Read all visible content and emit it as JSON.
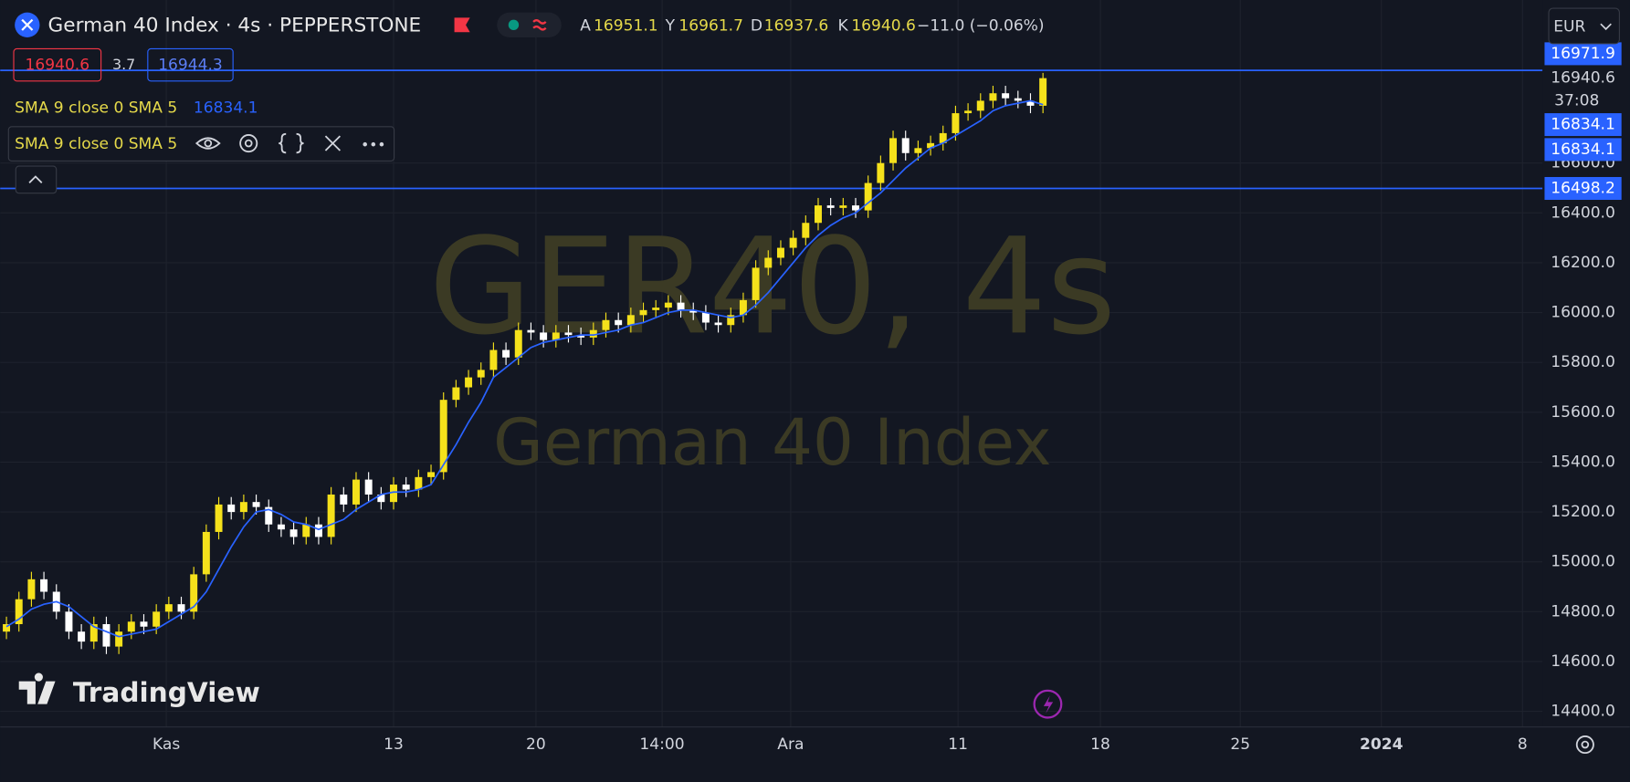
{
  "header": {
    "symbol_title": "German 40 Index · 4s · PEPPERSTONE",
    "ohlc": [
      {
        "key": "A",
        "value": 16951.1
      },
      {
        "key": "Y",
        "value": 16961.7
      },
      {
        "key": "D",
        "value": 16937.6
      },
      {
        "key": "K",
        "value": 16940.6
      }
    ],
    "change": "−11.0 (−0.06%)",
    "bid": 16940.6,
    "spread": 3.7,
    "ask": 16944.3,
    "currency": "EUR",
    "brand": "TradingView"
  },
  "chart_data": {
    "type": "candlestick",
    "watermark": "GER40, 4s",
    "watermark_subtitle": "German 40 Index",
    "up_color": "#f5e11b",
    "down_color": "#ffffff",
    "xlim": [
      -0.5,
      123
    ],
    "ylim": [
      14337.5,
      17254.2
    ],
    "xticks": [
      {
        "value": 12.8,
        "label": "Kas"
      },
      {
        "value": 31,
        "label": "13"
      },
      {
        "value": 42.4,
        "label": "20"
      },
      {
        "value": 52.5,
        "label": "14:00"
      },
      {
        "value": 62.8,
        "label": "Ara"
      },
      {
        "value": 76.2,
        "label": "11"
      },
      {
        "value": 87.6,
        "label": "18"
      },
      {
        "value": 98.8,
        "label": "25"
      },
      {
        "value": 110.1,
        "label": "2024"
      },
      {
        "value": 121.4,
        "label": "8"
      }
    ],
    "yticks": [
      {
        "value": 14400,
        "label": "14400.0"
      },
      {
        "value": 14600,
        "label": "14600.0"
      },
      {
        "value": 14800,
        "label": "14800.0"
      },
      {
        "value": 15000,
        "label": "15000.0"
      },
      {
        "value": 15200,
        "label": "15200.0"
      },
      {
        "value": 15400,
        "label": "15400.0"
      },
      {
        "value": 15600,
        "label": "15600.0"
      },
      {
        "value": 15800,
        "label": "15800.0"
      },
      {
        "value": 16000,
        "label": "16000.0"
      },
      {
        "value": 16200,
        "label": "16200.0"
      },
      {
        "value": 16400,
        "label": "16400.0"
      },
      {
        "value": 16600,
        "label": "16600.0"
      }
    ],
    "grid": true,
    "open": [
      14720,
      14750,
      14850,
      14930,
      14880,
      14800,
      14720,
      14680,
      14750,
      14660,
      14720,
      14760,
      14740,
      14800,
      14830,
      14800,
      14950,
      15120,
      15230,
      15200,
      15240,
      15220,
      15150,
      15130,
      15100,
      15150,
      15100,
      15270,
      15230,
      15330,
      15270,
      15240,
      15310,
      15290,
      15340,
      15360,
      15650,
      15700,
      15740,
      15770,
      15850,
      15820,
      15930,
      15920,
      15890,
      15920,
      15910,
      15900,
      15930,
      15970,
      15950,
      15990,
      16010,
      16020,
      16040,
      16010,
      16000,
      15960,
      15950,
      15990,
      16050,
      16180,
      16220,
      16260,
      16300,
      16360,
      16430,
      16420,
      16430,
      16410,
      16520,
      16600,
      16700,
      16640,
      16660,
      16680,
      16720,
      16800,
      16810,
      16850,
      16880,
      16860,
      16850,
      16830
    ],
    "high": [
      14780,
      14880,
      14960,
      14960,
      14910,
      14830,
      14750,
      14780,
      14780,
      14750,
      14790,
      14790,
      14830,
      14860,
      14860,
      14980,
      15150,
      15260,
      15260,
      15270,
      15270,
      15250,
      15180,
      15160,
      15180,
      15180,
      15300,
      15300,
      15360,
      15360,
      15300,
      15340,
      15340,
      15370,
      15390,
      15680,
      15730,
      15770,
      15800,
      15880,
      15880,
      15960,
      15960,
      15950,
      15950,
      15950,
      15940,
      15960,
      16000,
      16000,
      16020,
      16040,
      16050,
      16070,
      16070,
      16040,
      16030,
      15990,
      16020,
      16080,
      16210,
      16250,
      16290,
      16330,
      16390,
      16460,
      16460,
      16460,
      16460,
      16550,
      16630,
      16730,
      16730,
      16690,
      16710,
      16750,
      16830,
      16840,
      16880,
      16910,
      16910,
      16890,
      16880,
      16961.7
    ],
    "low": [
      14690,
      14720,
      14820,
      14850,
      14770,
      14690,
      14650,
      14650,
      14630,
      14630,
      14690,
      14710,
      14710,
      14770,
      14770,
      14770,
      14920,
      15090,
      15170,
      15170,
      15190,
      15120,
      15100,
      15070,
      15070,
      15070,
      15070,
      15200,
      15200,
      15240,
      15210,
      15210,
      15260,
      15260,
      15310,
      15330,
      15620,
      15670,
      15710,
      15740,
      15790,
      15790,
      15890,
      15860,
      15860,
      15880,
      15870,
      15870,
      15900,
      15920,
      15920,
      15960,
      15980,
      15990,
      15980,
      15970,
      15930,
      15920,
      15920,
      15960,
      16020,
      16150,
      16190,
      16230,
      16270,
      16330,
      16390,
      16390,
      16380,
      16380,
      16490,
      16570,
      16610,
      16610,
      16630,
      16650,
      16690,
      16770,
      16780,
      16820,
      16830,
      16820,
      16800,
      16800
    ],
    "close": [
      14750,
      14850,
      14930,
      14880,
      14800,
      14720,
      14680,
      14750,
      14660,
      14720,
      14760,
      14740,
      14800,
      14830,
      14800,
      14950,
      15120,
      15230,
      15200,
      15240,
      15220,
      15150,
      15130,
      15100,
      15150,
      15100,
      15270,
      15230,
      15330,
      15270,
      15240,
      15310,
      15290,
      15340,
      15360,
      15650,
      15700,
      15740,
      15770,
      15850,
      15820,
      15930,
      15920,
      15890,
      15920,
      15910,
      15900,
      15930,
      15970,
      15950,
      15990,
      16010,
      16020,
      16040,
      16010,
      16000,
      15960,
      15950,
      15990,
      16050,
      16180,
      16220,
      16260,
      16300,
      16360,
      16430,
      16420,
      16430,
      16410,
      16520,
      16600,
      16700,
      16640,
      16660,
      16680,
      16720,
      16800,
      16810,
      16850,
      16880,
      16860,
      16850,
      16830,
      16940.6
    ],
    "sma": {
      "name": "SMA 9 close 0 SMA 5",
      "color": "#2962ff",
      "values": [
        14740,
        14770,
        14810,
        14830,
        14840,
        14820,
        14780,
        14740,
        14720,
        14700,
        14710,
        14720,
        14730,
        14760,
        14790,
        14820,
        14880,
        14970,
        15060,
        15140,
        15200,
        15210,
        15190,
        15160,
        15150,
        15130,
        15150,
        15170,
        15210,
        15240,
        15270,
        15280,
        15280,
        15290,
        15310,
        15390,
        15470,
        15560,
        15640,
        15740,
        15780,
        15820,
        15860,
        15880,
        15890,
        15900,
        15910,
        15910,
        15920,
        15930,
        15950,
        15960,
        15980,
        16000,
        16010,
        16010,
        16000,
        15990,
        15980,
        15990,
        16030,
        16080,
        16140,
        16200,
        16260,
        16310,
        16350,
        16380,
        16400,
        16440,
        16480,
        16530,
        16580,
        16620,
        16660,
        16680,
        16710,
        16740,
        16770,
        16810,
        16830,
        16840,
        16850,
        16834.1
      ]
    },
    "price_lines": [
      {
        "value": 16971.9,
        "color": "#2962ff"
      },
      {
        "value": 16498.2,
        "color": "#2962ff"
      }
    ],
    "countdown": "37:08"
  }
}
